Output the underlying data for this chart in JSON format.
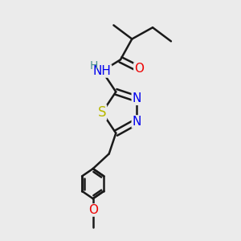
{
  "bg_color": "#ebebeb",
  "bond_color": "#1a1a1a",
  "bond_width": 1.8,
  "atoms": {
    "S": {
      "color": "#b8b800"
    },
    "N": {
      "color": "#0000ee"
    },
    "O": {
      "color": "#ee0000"
    },
    "NH": {
      "color": "#0000ee"
    },
    "H": {
      "color": "#4a9090"
    }
  },
  "font_size": 11
}
